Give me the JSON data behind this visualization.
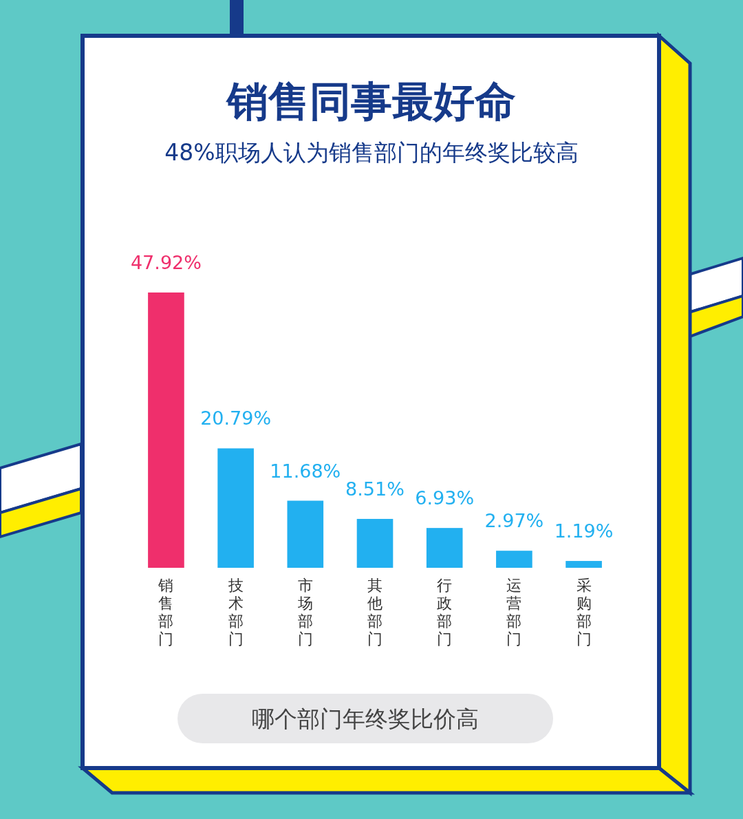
{
  "chart_data": {
    "type": "bar",
    "title": "销售同事最好命",
    "subtitle": "48%职场人认为销售部门的年终奖比较高",
    "categories": [
      "销售部门",
      "技术部门",
      "市场部门",
      "其他部门",
      "行政部门",
      "运营部门",
      "采购部门"
    ],
    "values": [
      47.92,
      20.79,
      11.68,
      8.51,
      6.93,
      2.97,
      1.19
    ],
    "value_labels": [
      "47.92%",
      "20.79%",
      "11.68%",
      "8.51%",
      "6.93%",
      "2.97%",
      "1.19%"
    ],
    "colors": [
      "#ef2f6c",
      "#22b0f0",
      "#22b0f0",
      "#22b0f0",
      "#22b0f0",
      "#22b0f0",
      "#22b0f0"
    ],
    "annotations": [
      "哪个部门年终奖比价高"
    ]
  }
}
